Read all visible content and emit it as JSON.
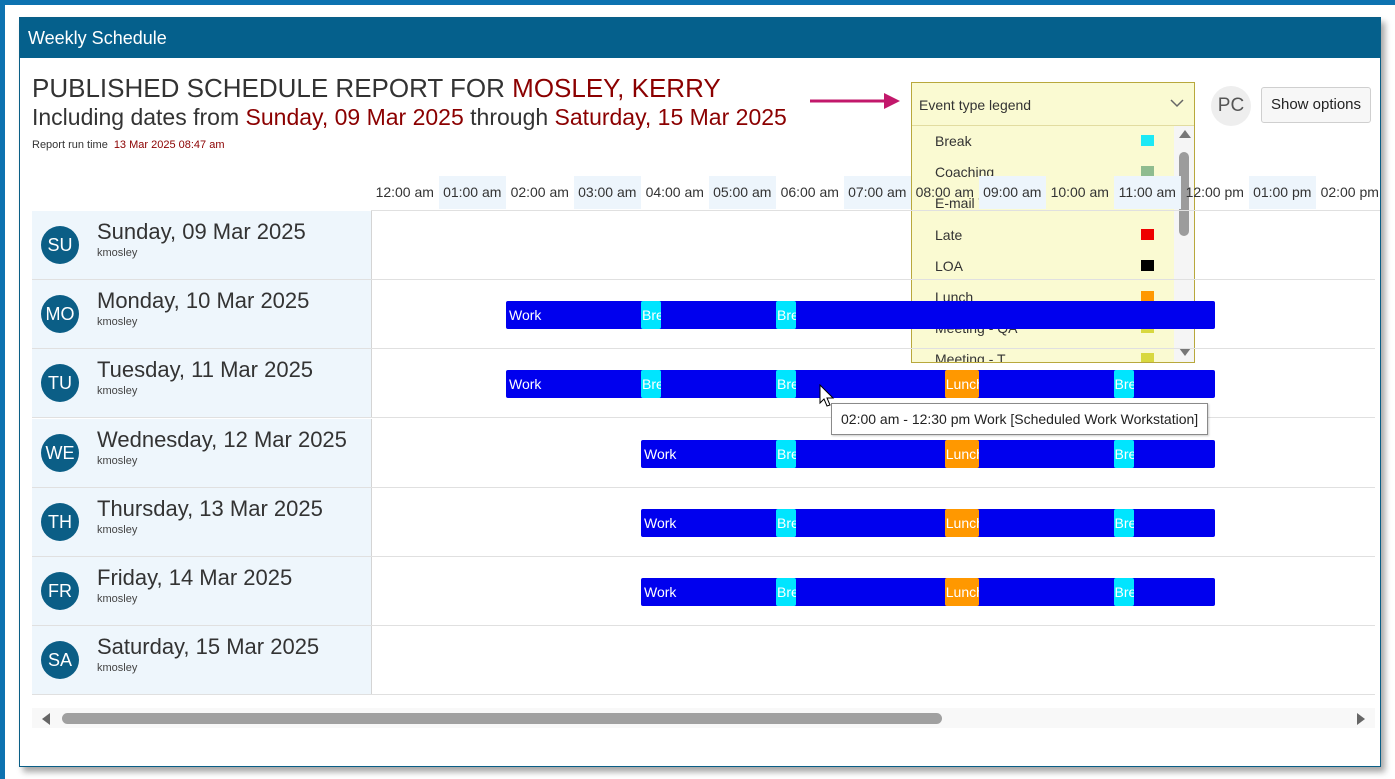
{
  "window": {
    "title": "Weekly Schedule"
  },
  "report": {
    "title_prefix": "PUBLISHED SCHEDULE REPORT FOR ",
    "employee": "MOSLEY, KERRY",
    "dates_prefix": "Including dates from ",
    "date_from": "Sunday, 09 Mar 2025",
    "dates_mid": " through ",
    "date_to": "Saturday, 15 Mar 2025",
    "run_time_label": "Report run time",
    "run_time_value": "13 Mar 2025 08:47 am"
  },
  "legend": {
    "title": "Event type legend",
    "items": [
      {
        "label": "Break",
        "color": "#1de9f5"
      },
      {
        "label": "Coaching",
        "color": "#8fbc8f"
      },
      {
        "label": "E-mail Work",
        "color": "#00ee00"
      },
      {
        "label": "Late",
        "color": "#ee0000"
      },
      {
        "label": "LOA",
        "color": "#000000"
      },
      {
        "label": "Lunch",
        "color": "#ff9800"
      },
      {
        "label": "Meeting - QA",
        "color": "#d8d840"
      },
      {
        "label": "Meeting - T",
        "color": "#d8d840"
      }
    ]
  },
  "user_badge": "PC",
  "show_options_label": "Show options",
  "timeline": {
    "ticks": [
      "12:00 am",
      "01:00 am",
      "02:00 am",
      "03:00 am",
      "04:00 am",
      "05:00 am",
      "06:00 am",
      "07:00 am",
      "08:00 am",
      "09:00 am",
      "10:00 am",
      "11:00 am",
      "12:00 pm",
      "01:00 pm",
      "02:00 pm"
    ]
  },
  "days": [
    {
      "abbr": "SU",
      "name": "Sunday, 09 Mar 2025",
      "user": "kmosley",
      "bar": null
    },
    {
      "abbr": "MO",
      "name": "Monday, 10 Mar 2025",
      "user": "kmosley",
      "bar": {
        "label": "Work",
        "start": 2,
        "end": 12.5,
        "segments": [
          {
            "type": "break",
            "label": "Break",
            "start": 4,
            "end": 4.3
          },
          {
            "type": "break",
            "label": "Break",
            "start": 6,
            "end": 6.3
          }
        ]
      }
    },
    {
      "abbr": "TU",
      "name": "Tuesday, 11 Mar 2025",
      "user": "kmosley",
      "bar": {
        "label": "Work",
        "start": 2,
        "end": 12.5,
        "segments": [
          {
            "type": "break",
            "label": "Break",
            "start": 4,
            "end": 4.3
          },
          {
            "type": "break",
            "label": "Break",
            "start": 6,
            "end": 6.3
          },
          {
            "type": "lunch",
            "label": "Lunch",
            "start": 8.5,
            "end": 9
          },
          {
            "type": "break",
            "label": "Break",
            "start": 11,
            "end": 11.3
          }
        ]
      }
    },
    {
      "abbr": "WE",
      "name": "Wednesday, 12 Mar 2025",
      "user": "kmosley",
      "bar": {
        "label": "Work",
        "start": 4,
        "end": 12.5,
        "segments": [
          {
            "type": "break",
            "label": "Break",
            "start": 6,
            "end": 6.3
          },
          {
            "type": "lunch",
            "label": "Lunch",
            "start": 8.5,
            "end": 9
          },
          {
            "type": "break",
            "label": "Break",
            "start": 11,
            "end": 11.3
          }
        ]
      }
    },
    {
      "abbr": "TH",
      "name": "Thursday, 13 Mar 2025",
      "user": "kmosley",
      "bar": {
        "label": "Work",
        "start": 4,
        "end": 12.5,
        "segments": [
          {
            "type": "break",
            "label": "Break",
            "start": 6,
            "end": 6.3
          },
          {
            "type": "lunch",
            "label": "Lunch",
            "start": 8.5,
            "end": 9
          },
          {
            "type": "break",
            "label": "Break",
            "start": 11,
            "end": 11.3
          }
        ]
      }
    },
    {
      "abbr": "FR",
      "name": "Friday, 14 Mar 2025",
      "user": "kmosley",
      "bar": {
        "label": "Work",
        "start": 4,
        "end": 12.5,
        "segments": [
          {
            "type": "break",
            "label": "Break",
            "start": 6,
            "end": 6.3
          },
          {
            "type": "lunch",
            "label": "Lunch",
            "start": 8.5,
            "end": 9
          },
          {
            "type": "break",
            "label": "Break",
            "start": 11,
            "end": 11.3
          }
        ]
      }
    },
    {
      "abbr": "SA",
      "name": "Saturday, 15 Mar 2025",
      "user": "kmosley",
      "bar": null
    }
  ],
  "tooltip": "02:00 am - 12:30 pm Work [Scheduled Work Workstation]"
}
